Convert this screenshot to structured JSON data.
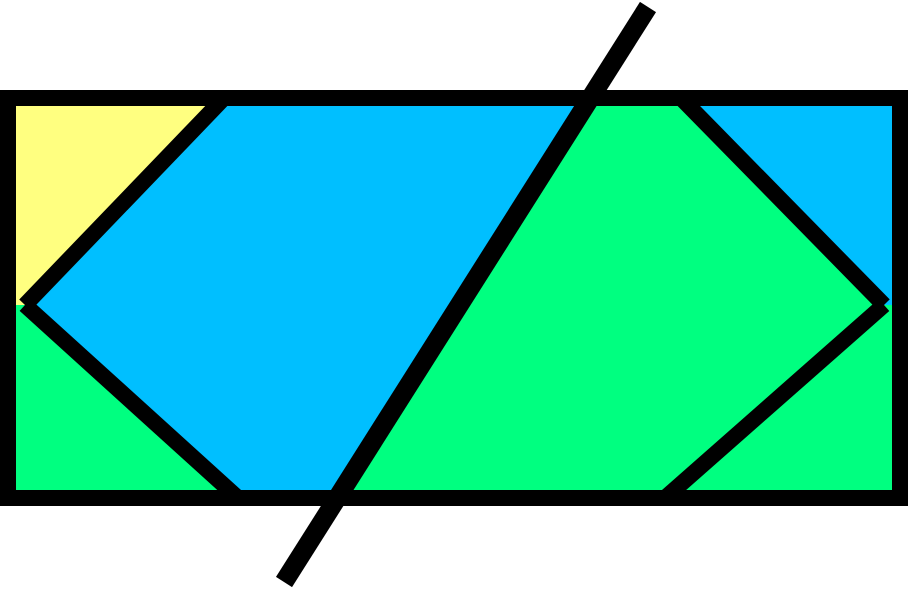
{
  "diagram": {
    "kind": "rectangle partition puzzle",
    "colors": {
      "yellow": "#ffff80",
      "blue": "#00bfff",
      "green": "#00ff80",
      "outline": "#000000",
      "background": "#ffffff"
    },
    "regions": [
      {
        "id": "top-left-triangle",
        "color": "yellow"
      },
      {
        "id": "left-hexagon",
        "color": "blue"
      },
      {
        "id": "bottom-left-triangle",
        "color": "green"
      },
      {
        "id": "center-quadrilateral",
        "color": "green"
      },
      {
        "id": "top-right-triangle",
        "color": "blue"
      },
      {
        "id": "bottom-right-triangle",
        "color": "green"
      }
    ]
  }
}
